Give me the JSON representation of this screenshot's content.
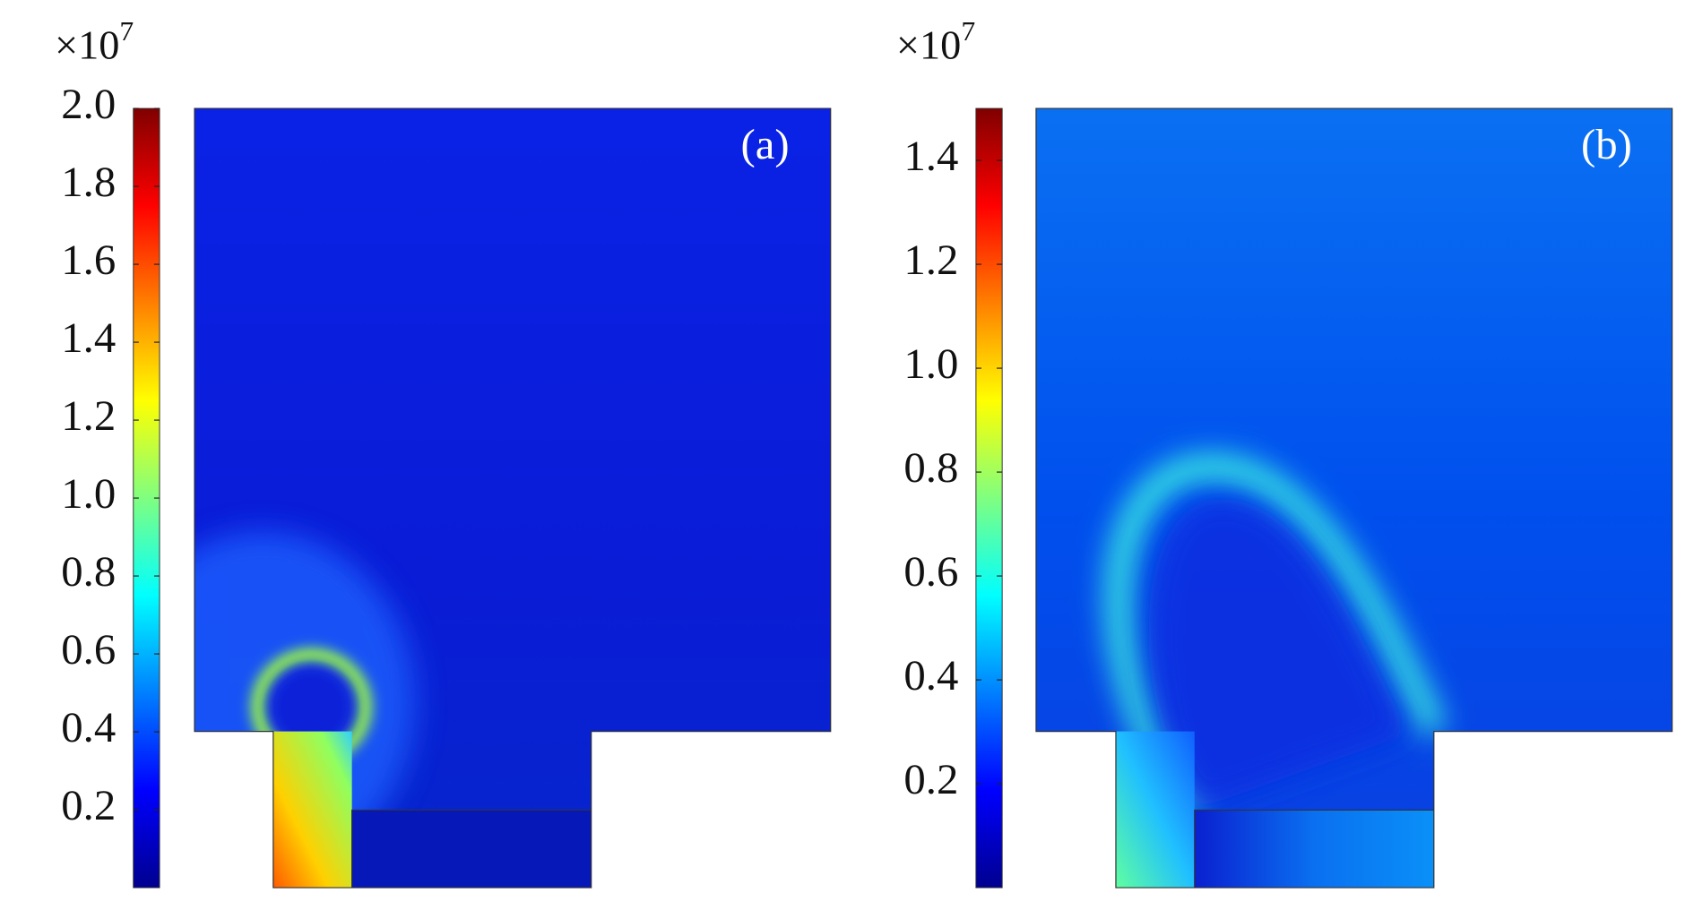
{
  "chart_data": [
    {
      "type": "heatmap",
      "label": "(a)",
      "colormap": "jet",
      "colorbar": {
        "lim": [
          0,
          2.0
        ],
        "multiplier": "×10",
        "exponent": "7",
        "ticks": [
          0.2,
          0.4,
          0.6,
          0.8,
          {
            "value": 1.0,
            "label": "1.0"
          },
          1.2,
          1.4,
          1.6,
          1.8,
          {
            "value": 2.0,
            "label": "2.0"
          }
        ]
      }
    },
    {
      "type": "heatmap",
      "label": "(b)",
      "colormap": "jet",
      "colorbar": {
        "lim": [
          0,
          1.5
        ],
        "multiplier": "×10",
        "exponent": "7",
        "ticks": [
          0.2,
          0.4,
          0.6,
          0.8,
          {
            "value": 1.0,
            "label": "1.0"
          },
          1.2,
          1.4
        ]
      }
    }
  ]
}
